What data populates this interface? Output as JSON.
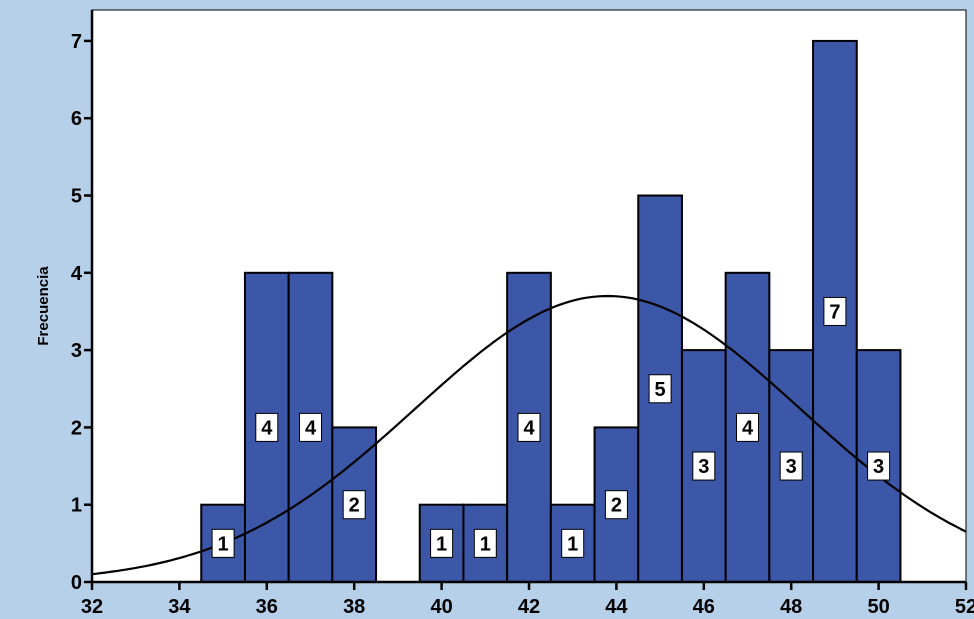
{
  "chart_data": {
    "type": "bar",
    "subtype": "histogram",
    "xlabel": "",
    "ylabel": "Frecuencia",
    "xlim": [
      32,
      52
    ],
    "ylim": [
      0,
      7.4
    ],
    "x_ticks": [
      "32",
      "34",
      "36",
      "38",
      "40",
      "42",
      "44",
      "46",
      "48",
      "50",
      "52"
    ],
    "y_ticks": [
      "0",
      "1",
      "2",
      "3",
      "4",
      "5",
      "6",
      "7"
    ],
    "bin_width": 1,
    "bins": [
      {
        "center": 35,
        "count": 1,
        "label": "1"
      },
      {
        "center": 36,
        "count": 4,
        "label": "4"
      },
      {
        "center": 37,
        "count": 4,
        "label": "4"
      },
      {
        "center": 38,
        "count": 2,
        "label": "2"
      },
      {
        "center": 40,
        "count": 1,
        "label": "1"
      },
      {
        "center": 41,
        "count": 1,
        "label": "1"
      },
      {
        "center": 42,
        "count": 4,
        "label": "4"
      },
      {
        "center": 43,
        "count": 1,
        "label": "1"
      },
      {
        "center": 44,
        "count": 2,
        "label": "2"
      },
      {
        "center": 45,
        "count": 5,
        "label": "5"
      },
      {
        "center": 46,
        "count": 3,
        "label": "3"
      },
      {
        "center": 47,
        "count": 4,
        "label": "4"
      },
      {
        "center": 48,
        "count": 3,
        "label": "3"
      },
      {
        "center": 49,
        "count": 7,
        "label": "7"
      },
      {
        "center": 50,
        "count": 3,
        "label": "3"
      }
    ],
    "normal_curve": {
      "mean": 43.8,
      "std_dev": 4.4,
      "peak": 3.7
    },
    "grid": false,
    "colors": {
      "bar": "#3c56a8",
      "frame": "#b7d0ea",
      "plot_bg": "#ffffff",
      "curve": "#000000"
    }
  }
}
